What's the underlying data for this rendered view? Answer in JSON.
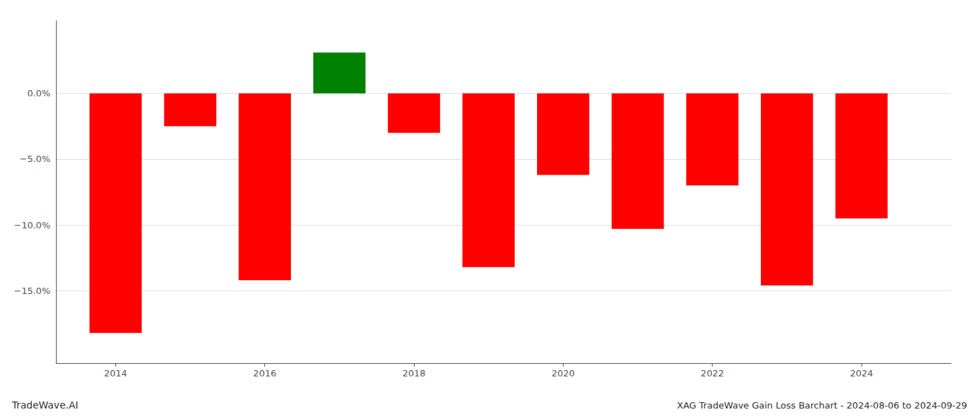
{
  "chart_data": {
    "type": "bar",
    "title": "XAG TradeWave Gain Loss Barchart - 2024-08-06 to 2024-09-29",
    "annotations": [
      "TradeWave.AI"
    ],
    "x": [
      2014,
      2015,
      2016,
      2017,
      2018,
      2019,
      2020,
      2021,
      2022,
      2023,
      2024
    ],
    "values": [
      -18.2,
      -2.5,
      -14.2,
      3.1,
      -3.0,
      -13.2,
      -6.2,
      -10.3,
      -7.0,
      -14.6,
      -9.5
    ],
    "colors": [
      "#ff0000",
      "#ff0000",
      "#ff0000",
      "#008000",
      "#ff0000",
      "#ff0000",
      "#ff0000",
      "#ff0000",
      "#ff0000",
      "#ff0000",
      "#ff0000"
    ],
    "xlim": [
      2013.2,
      2025.2
    ],
    "xticks": [
      2014,
      2016,
      2018,
      2020,
      2022,
      2024
    ],
    "ylim": [
      -20.5,
      5.5
    ],
    "yticks": [
      {
        "value": 0.0,
        "label": "0.0%"
      },
      {
        "value": -5.0,
        "label": "−5.0%"
      },
      {
        "value": -10.0,
        "label": "−10.0%"
      },
      {
        "value": -15.0,
        "label": "−15.0%"
      }
    ],
    "grid": true
  }
}
